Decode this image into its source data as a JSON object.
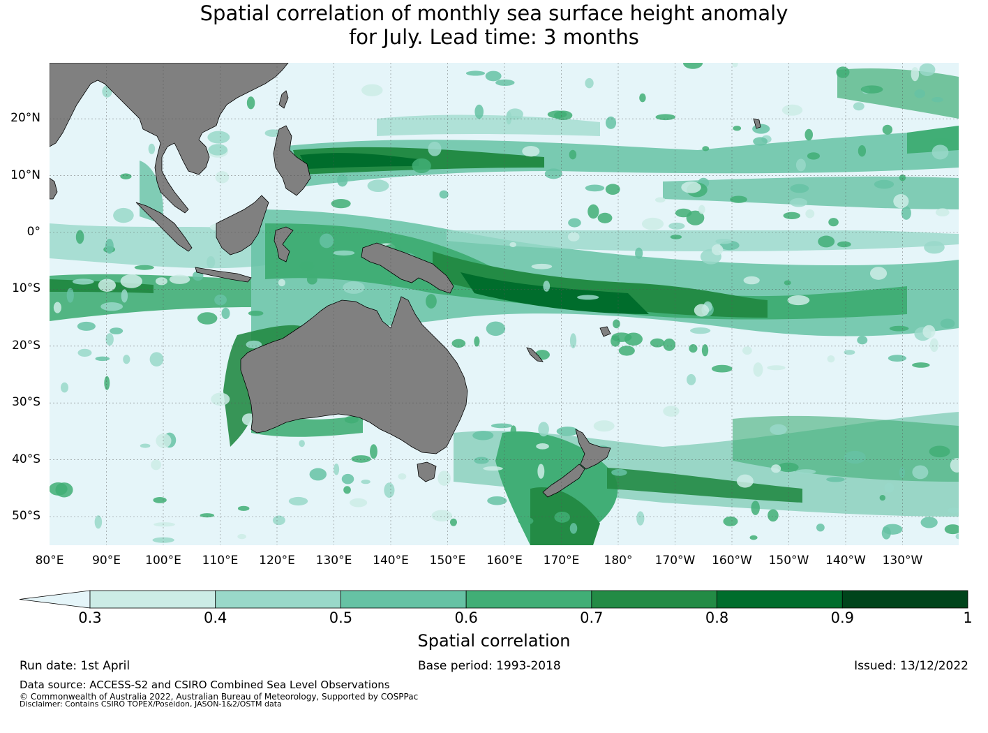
{
  "title": {
    "line1": "Spatial correlation of monthly sea surface height anomaly",
    "line2": "for July. Lead time: 3 months"
  },
  "map": {
    "lat_labels": [
      "20°N",
      "10°N",
      "0°",
      "10°S",
      "20°S",
      "30°S",
      "40°S",
      "50°S"
    ],
    "lon_labels": [
      "80°E",
      "90°E",
      "100°E",
      "110°E",
      "120°E",
      "130°E",
      "140°E",
      "150°E",
      "160°E",
      "170°E",
      "180°",
      "170°W",
      "160°W",
      "150°W",
      "140°W",
      "130°W"
    ],
    "lat_range": [
      -55,
      30
    ],
    "lon_range": [
      80,
      240
    ],
    "ocean_color": "#e5f5f9",
    "land_color": "#808080"
  },
  "colorbar": {
    "ticks": [
      "0.3",
      "0.4",
      "0.5",
      "0.6",
      "0.7",
      "0.8",
      "0.9",
      "1"
    ],
    "colors": [
      "#ccece6",
      "#99d8c9",
      "#66c2a4",
      "#41ae76",
      "#238b45",
      "#006d2c",
      "#00441b"
    ],
    "under_color": "#e5f5f9",
    "label": "Spatial correlation"
  },
  "footer": {
    "run_date": "Run date: 1st April",
    "base_period": "Base period: 1993-2018",
    "issued": "Issued: 13/12/2022",
    "data_source": "Data source: ACCESS-S2 and CSIRO Combined Sea Level Observations",
    "copyright": "© Commonwealth of Australia 2022, Australian Bureau of Meteorology, Supported by COSPPac",
    "disclaimer": "Disclaimer: Contains CSIRO TOPEX/Poseidon, JASON-1&2/OSTM data"
  }
}
